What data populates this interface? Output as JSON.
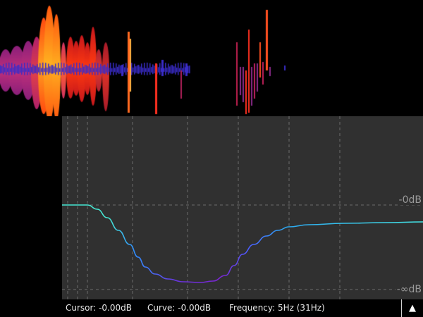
{
  "spectrum": {
    "db_top_label": "-0dB",
    "db_bottom_label": "-∞dB"
  },
  "status_bar": {
    "cursor": "Cursor: -0.00dB",
    "curve": "Curve: -0.00dB",
    "frequency": "Frequency: 5Hz (31Hz)",
    "collapse_icon": "triangle-up-icon",
    "collapse_glyph": "▲"
  },
  "colors": {
    "panel_bg": "#303030",
    "grid": "#6a6a6a",
    "curve_start": "#30e0d0",
    "curve_mid": "#3a6cff",
    "curve_low": "#7a28d8"
  }
}
